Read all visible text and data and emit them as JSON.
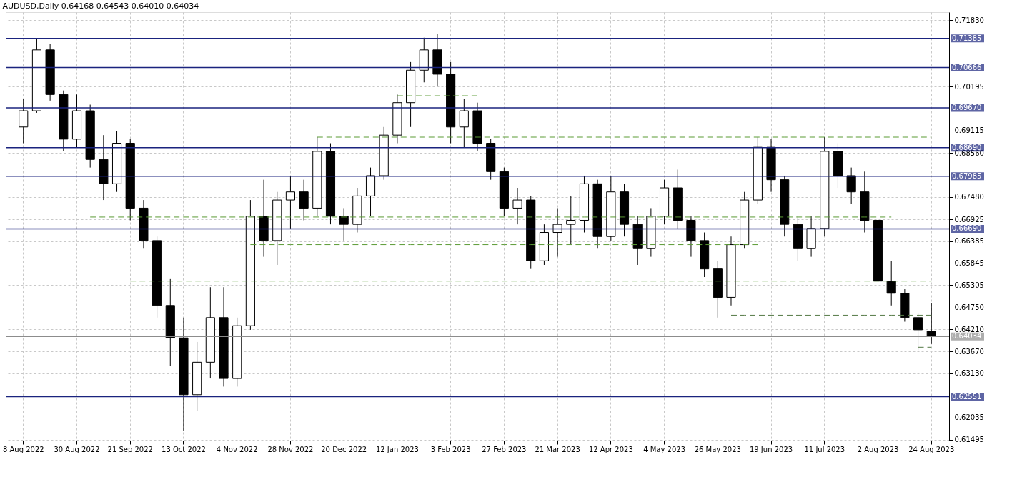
{
  "chart_data": {
    "type": "candlestick",
    "title": "AUDUSD,Daily  0.64168 0.64543 0.64010 0.64034",
    "categories": [
      "8 Aug 2022",
      null,
      null,
      null,
      "30 Aug 2022",
      null,
      null,
      null,
      "21 Sep 2022",
      null,
      null,
      null,
      "13 Oct 2022",
      null,
      null,
      null,
      "4 Nov 2022",
      null,
      null,
      null,
      "28 Nov 2022",
      null,
      null,
      null,
      "20 Dec 2022",
      null,
      null,
      null,
      "12 Jan 2023",
      null,
      null,
      null,
      "3 Feb 2023",
      null,
      null,
      null,
      "27 Feb 2023",
      null,
      null,
      null,
      "21 Mar 2023",
      null,
      null,
      null,
      "12 Apr 2023",
      null,
      null,
      null,
      "4 May 2023",
      null,
      null,
      null,
      "26 May 2023",
      null,
      null,
      null,
      "19 Jun 2023",
      null,
      null,
      null,
      "11 Jul 2023",
      null,
      null,
      null,
      "2 Aug 2023",
      null,
      null,
      null,
      "24 Aug 2023"
    ],
    "ohlc": [
      [
        0.692,
        0.699,
        0.688,
        0.696
      ],
      [
        0.696,
        0.7138,
        0.6955,
        0.711
      ],
      [
        0.711,
        0.7125,
        0.6985,
        0.7
      ],
      [
        0.7,
        0.701,
        0.686,
        0.689
      ],
      [
        0.689,
        0.7,
        0.687,
        0.696
      ],
      [
        0.696,
        0.6975,
        0.682,
        0.684
      ],
      [
        0.684,
        0.69,
        0.674,
        0.678
      ],
      [
        0.678,
        0.691,
        0.676,
        0.688
      ],
      [
        0.688,
        0.689,
        0.669,
        0.672
      ],
      [
        0.672,
        0.674,
        0.662,
        0.664
      ],
      [
        0.664,
        0.665,
        0.645,
        0.648
      ],
      [
        0.648,
        0.6545,
        0.633,
        0.64
      ],
      [
        0.64,
        0.645,
        0.617,
        0.626
      ],
      [
        0.626,
        0.639,
        0.622,
        0.634
      ],
      [
        0.634,
        0.6525,
        0.63,
        0.645
      ],
      [
        0.645,
        0.6525,
        0.628,
        0.63
      ],
      [
        0.63,
        0.645,
        0.628,
        0.643
      ],
      [
        0.643,
        0.674,
        0.642,
        0.67
      ],
      [
        0.67,
        0.679,
        0.66,
        0.664
      ],
      [
        0.664,
        0.676,
        0.658,
        0.674
      ],
      [
        0.674,
        0.68,
        0.667,
        0.676
      ],
      [
        0.676,
        0.679,
        0.669,
        0.672
      ],
      [
        0.672,
        0.6895,
        0.67,
        0.686
      ],
      [
        0.686,
        0.688,
        0.668,
        0.67
      ],
      [
        0.67,
        0.672,
        0.664,
        0.668
      ],
      [
        0.668,
        0.677,
        0.666,
        0.675
      ],
      [
        0.675,
        0.682,
        0.67,
        0.68
      ],
      [
        0.68,
        0.692,
        0.679,
        0.69
      ],
      [
        0.69,
        0.7,
        0.688,
        0.698
      ],
      [
        0.698,
        0.708,
        0.692,
        0.706
      ],
      [
        0.706,
        0.714,
        0.703,
        0.711
      ],
      [
        0.711,
        0.715,
        0.702,
        0.705
      ],
      [
        0.705,
        0.708,
        0.688,
        0.692
      ],
      [
        0.692,
        0.699,
        0.687,
        0.696
      ],
      [
        0.696,
        0.698,
        0.686,
        0.688
      ],
      [
        0.688,
        0.689,
        0.679,
        0.681
      ],
      [
        0.681,
        0.682,
        0.67,
        0.672
      ],
      [
        0.672,
        0.677,
        0.668,
        0.674
      ],
      [
        0.674,
        0.675,
        0.657,
        0.659
      ],
      [
        0.659,
        0.668,
        0.658,
        0.666
      ],
      [
        0.666,
        0.672,
        0.66,
        0.668
      ],
      [
        0.668,
        0.675,
        0.663,
        0.669
      ],
      [
        0.669,
        0.68,
        0.666,
        0.678
      ],
      [
        0.678,
        0.679,
        0.662,
        0.665
      ],
      [
        0.665,
        0.68,
        0.664,
        0.676
      ],
      [
        0.676,
        0.678,
        0.665,
        0.668
      ],
      [
        0.668,
        0.67,
        0.658,
        0.662
      ],
      [
        0.662,
        0.672,
        0.66,
        0.67
      ],
      [
        0.67,
        0.679,
        0.668,
        0.677
      ],
      [
        0.677,
        0.6815,
        0.667,
        0.669
      ],
      [
        0.669,
        0.67,
        0.66,
        0.664
      ],
      [
        0.664,
        0.666,
        0.655,
        0.657
      ],
      [
        0.657,
        0.659,
        0.645,
        0.65
      ],
      [
        0.65,
        0.665,
        0.648,
        0.663
      ],
      [
        0.663,
        0.676,
        0.662,
        0.674
      ],
      [
        0.674,
        0.6895,
        0.673,
        0.687
      ],
      [
        0.687,
        0.689,
        0.676,
        0.679
      ],
      [
        0.679,
        0.68,
        0.665,
        0.668
      ],
      [
        0.668,
        0.67,
        0.659,
        0.662
      ],
      [
        0.662,
        0.67,
        0.66,
        0.667
      ],
      [
        0.667,
        0.6895,
        0.665,
        0.686
      ],
      [
        0.686,
        0.688,
        0.677,
        0.68
      ],
      [
        0.68,
        0.682,
        0.673,
        0.676
      ],
      [
        0.676,
        0.681,
        0.666,
        0.669
      ],
      [
        0.669,
        0.67,
        0.652,
        0.654
      ],
      [
        0.654,
        0.659,
        0.648,
        0.651
      ],
      [
        0.651,
        0.652,
        0.644,
        0.645
      ],
      [
        0.645,
        0.646,
        0.637,
        0.642
      ],
      [
        0.6417,
        0.6485,
        0.6385,
        0.64034
      ]
    ],
    "series": [
      {
        "type": "line",
        "color": "#5b9b35",
        "line_style": "dashed",
        "values": [
          null,
          null,
          null,
          null,
          null,
          null,
          null,
          null,
          null,
          null,
          null,
          null,
          null,
          null,
          null,
          null,
          null,
          null,
          null,
          null,
          null,
          null,
          null,
          null,
          null,
          null,
          null,
          null,
          0.6997,
          0.6997,
          0.6997,
          0.6997,
          0.6997,
          0.6997,
          0.6997,
          null,
          null,
          null,
          null,
          null,
          null,
          null,
          null,
          null,
          null,
          null,
          null,
          null,
          null,
          null,
          null,
          null,
          null,
          null,
          null,
          null,
          null,
          null,
          null,
          null,
          null,
          null,
          null,
          null,
          null,
          null,
          null,
          null,
          null
        ]
      },
      {
        "type": "line",
        "color": "#5b9b35",
        "line_style": "dashed",
        "values": [
          null,
          null,
          null,
          null,
          null,
          null,
          null,
          null,
          null,
          null,
          null,
          null,
          null,
          null,
          null,
          null,
          null,
          null,
          null,
          null,
          null,
          null,
          0.6895,
          0.6895,
          0.6895,
          0.6895,
          0.6895,
          0.6895,
          0.6895,
          0.6895,
          0.6895,
          0.6895,
          0.6895,
          0.6895,
          0.6895,
          0.6895,
          0.6895,
          0.6895,
          0.6895,
          0.6895,
          0.6895,
          0.6895,
          0.6895,
          0.6895,
          0.6895,
          0.6895,
          0.6895,
          0.6895,
          0.6895,
          0.6895,
          0.6895,
          0.6895,
          0.6895,
          0.6895,
          0.6895,
          0.6895,
          0.6895,
          0.6895,
          0.6895,
          0.6895,
          0.6895,
          0.6895,
          0.6895,
          0.6895,
          0.6895,
          0.6895,
          0.6895,
          0.6895,
          0.6895
        ]
      },
      {
        "type": "line",
        "color": "#5b9b35",
        "line_style": "dashed",
        "values": [
          null,
          null,
          null,
          null,
          null,
          0.6698,
          0.6698,
          0.6698,
          0.6698,
          0.6698,
          0.6698,
          0.6698,
          0.6698,
          0.6698,
          0.6698,
          0.6698,
          0.6698,
          0.6698,
          0.6698,
          0.6698,
          0.6698,
          0.6698,
          0.6698,
          0.6698,
          0.6698,
          0.6698,
          0.6698,
          0.6698,
          0.6698,
          0.6698,
          0.6698,
          0.6698,
          0.6698,
          0.6698,
          0.6698,
          0.6698,
          0.6698,
          0.6698,
          0.6698,
          0.6698,
          0.6698,
          0.6698,
          0.6698,
          0.6698,
          0.6698,
          0.6698,
          0.6698,
          0.6698,
          0.6698,
          0.6698,
          0.6698,
          0.6698,
          0.6698,
          0.6698,
          0.6698,
          0.6698,
          0.6698,
          0.6698,
          0.6698,
          0.6698,
          0.6698,
          0.6698,
          0.6698,
          0.6698,
          0.6698,
          0.6698,
          null,
          null,
          null
        ]
      },
      {
        "type": "line",
        "color": "#5b9b35",
        "line_style": "dashed",
        "values": [
          null,
          null,
          null,
          null,
          null,
          null,
          null,
          null,
          null,
          null,
          null,
          null,
          null,
          null,
          null,
          null,
          null,
          0.663,
          0.663,
          0.663,
          0.663,
          0.663,
          0.663,
          0.663,
          0.663,
          0.663,
          0.663,
          0.663,
          0.663,
          0.663,
          0.663,
          0.663,
          0.663,
          0.663,
          0.663,
          0.663,
          0.663,
          0.663,
          0.663,
          0.663,
          0.663,
          0.663,
          0.663,
          0.663,
          0.663,
          0.663,
          0.663,
          0.663,
          0.663,
          0.663,
          0.663,
          0.663,
          0.663,
          0.663,
          0.663,
          0.663,
          null,
          null,
          null,
          null,
          null,
          null,
          null,
          null,
          null,
          null,
          null,
          null,
          null
        ]
      },
      {
        "type": "line",
        "color": "#5b9b35",
        "line_style": "dashed",
        "values": [
          null,
          null,
          null,
          null,
          null,
          null,
          null,
          null,
          0.654,
          0.654,
          0.654,
          0.654,
          0.654,
          0.654,
          0.654,
          0.654,
          0.654,
          0.654,
          0.654,
          0.654,
          0.654,
          0.654,
          0.654,
          0.654,
          0.654,
          0.654,
          0.654,
          0.654,
          0.654,
          0.654,
          0.654,
          0.654,
          0.654,
          0.654,
          0.654,
          0.654,
          0.654,
          0.654,
          0.654,
          0.654,
          0.654,
          0.654,
          0.654,
          0.654,
          0.654,
          0.654,
          0.654,
          0.654,
          0.654,
          0.654,
          0.654,
          0.654,
          0.654,
          0.654,
          0.654,
          0.654,
          0.654,
          0.654,
          0.654,
          0.654,
          0.654,
          0.654,
          0.654,
          0.654,
          0.654,
          0.654,
          0.654,
          0.654,
          0.654
        ]
      },
      {
        "type": "line",
        "color": "#557a46",
        "line_style": "dashed",
        "values": [
          null,
          null,
          null,
          null,
          null,
          null,
          null,
          null,
          null,
          null,
          null,
          null,
          null,
          null,
          null,
          null,
          null,
          null,
          null,
          null,
          null,
          null,
          null,
          null,
          null,
          null,
          null,
          null,
          null,
          null,
          null,
          null,
          null,
          null,
          null,
          null,
          null,
          null,
          null,
          null,
          null,
          null,
          null,
          null,
          null,
          null,
          null,
          null,
          null,
          null,
          null,
          null,
          null,
          0.6456,
          0.6456,
          0.6456,
          0.6456,
          0.6456,
          0.6456,
          0.6456,
          0.6456,
          0.6456,
          0.6456,
          0.6456,
          0.6456,
          0.6456,
          0.6456,
          0.6456,
          0.6456
        ]
      },
      {
        "type": "line",
        "color": "#557a46",
        "line_style": "dashed",
        "values": [
          null,
          null,
          null,
          null,
          null,
          null,
          null,
          null,
          null,
          null,
          null,
          null,
          null,
          null,
          null,
          null,
          null,
          null,
          null,
          null,
          null,
          null,
          null,
          null,
          null,
          null,
          null,
          null,
          null,
          null,
          null,
          null,
          null,
          null,
          null,
          null,
          null,
          null,
          null,
          null,
          null,
          null,
          null,
          null,
          null,
          null,
          null,
          null,
          null,
          null,
          null,
          null,
          null,
          null,
          null,
          null,
          null,
          null,
          null,
          null,
          null,
          null,
          null,
          null,
          null,
          null,
          null,
          0.6377,
          0.6377
        ]
      }
    ],
    "ylim": [
      0.6147,
      0.7203
    ],
    "yticks": [
      {
        "value": 0.7183,
        "label": "0.71830"
      },
      {
        "value": 0.70195,
        "label": "0.70195"
      },
      {
        "value": 0.69115,
        "label": "0.69115"
      },
      {
        "value": 0.6856,
        "label": "0.68560"
      },
      {
        "value": 0.6748,
        "label": "0.67480"
      },
      {
        "value": 0.66925,
        "label": "0.66925"
      },
      {
        "value": 0.66385,
        "label": "0.66385"
      },
      {
        "value": 0.65845,
        "label": "0.65845"
      },
      {
        "value": 0.65305,
        "label": "0.65305"
      },
      {
        "value": 0.6475,
        "label": "0.64750"
      },
      {
        "value": 0.6421,
        "label": "0.64210"
      },
      {
        "value": 0.6367,
        "label": "0.63670"
      },
      {
        "value": 0.6313,
        "label": "0.63130"
      },
      {
        "value": 0.62035,
        "label": "0.62035"
      },
      {
        "value": 0.61495,
        "label": "0.61495"
      }
    ],
    "ref_lines": [
      {
        "axis": "y",
        "value": 0.71385,
        "label": "0.71385",
        "color": "#1a237e"
      },
      {
        "axis": "y",
        "value": 0.70666,
        "label": "0.70666",
        "color": "#1a237e"
      },
      {
        "axis": "y",
        "value": 0.6967,
        "label": "0.69670",
        "color": "#1a237e"
      },
      {
        "axis": "y",
        "value": 0.6869,
        "label": "0.68690",
        "color": "#1a237e"
      },
      {
        "axis": "y",
        "value": 0.67985,
        "label": "0.67985",
        "color": "#1a237e"
      },
      {
        "axis": "y",
        "value": 0.6669,
        "label": "0.66690",
        "color": "#1a237e"
      },
      {
        "axis": "y",
        "value": 0.62551,
        "label": "0.62551",
        "color": "#1a237e"
      },
      {
        "axis": "y",
        "value": 0.64034,
        "label": "0.64034",
        "color": "#8c8c8c"
      }
    ],
    "grid": true
  }
}
